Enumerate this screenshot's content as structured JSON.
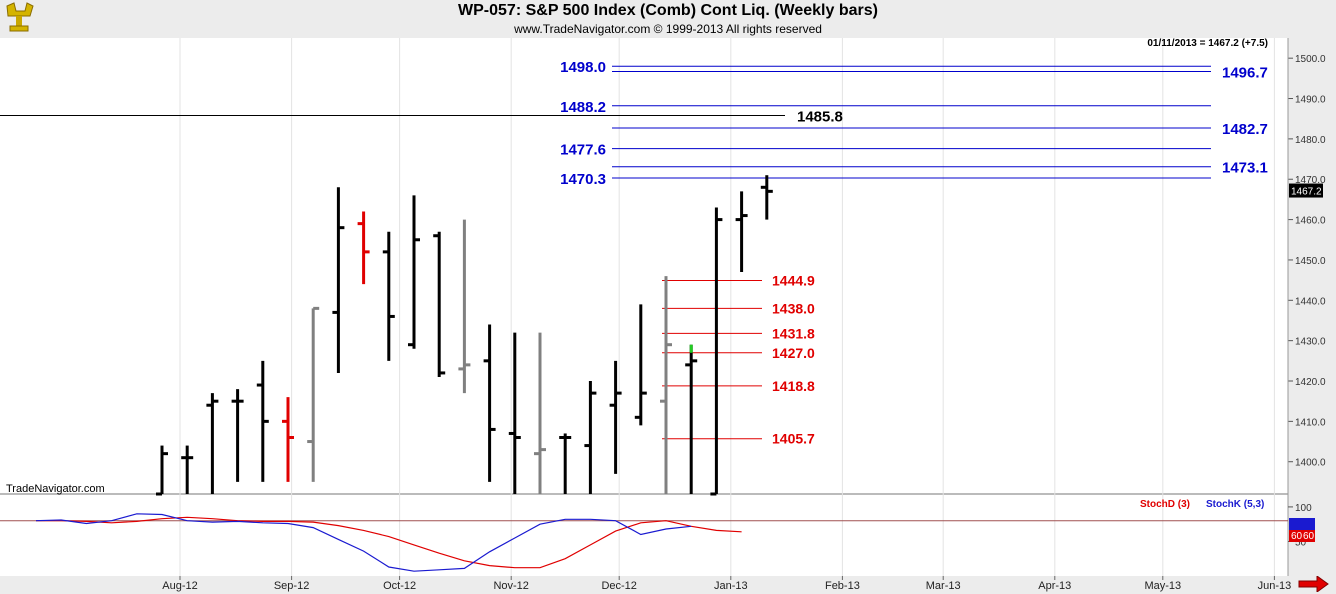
{
  "header": {
    "title": "WP-057:  S&P 500 Index (Comb) Cont Liq.  (Weekly bars)",
    "subtitle": "www.TradeNavigator.com © 1999-2013 All rights reserved"
  },
  "quote": "01/11/2013 = 1467.2 (+7.5)",
  "watermark": "TradeNavigator.com",
  "last_price_tag": "1467.2",
  "stoch_value_tags": [
    "60",
    "60"
  ],
  "colors": {
    "up": "#000000",
    "down": "#e00000",
    "inside": "#808080",
    "highlight": "#22cc22",
    "levels_blue": "#0000cc",
    "levels_red": "#e00000",
    "stochD": "#e00000",
    "stochK": "#1a1ad0",
    "nav_arrow": "#e00000"
  },
  "chart_data": [
    {
      "type": "ohlc",
      "title": "WP-057:  S&P 500 Index (Comb) Cont Liq.  (Weekly bars)",
      "ylim": [
        1392,
        1505
      ],
      "y_ticks": [
        1400,
        1410,
        1420,
        1430,
        1440,
        1450,
        1460,
        1470,
        1480,
        1490,
        1500
      ],
      "y_tick_labels": [
        "1400.0",
        "1410.0",
        "1420.0",
        "1430.0",
        "1440.0",
        "1450.0",
        "1460.0",
        "1470.0",
        "1480.0",
        "1490.0",
        "1500.0"
      ],
      "x_labels": [
        "Aug-12",
        "Sep-12",
        "Oct-12",
        "Nov-12",
        "Dec-12",
        "Jan-13",
        "Feb-13",
        "Mar-13",
        "Apr-13",
        "May-13",
        "Jun-13"
      ],
      "bars": [
        {
          "date": "2012-07-27",
          "o": 1392,
          "h": 1404,
          "l": 1392,
          "c": 1402,
          "color": "black"
        },
        {
          "date": "2012-08-03",
          "o": 1401,
          "h": 1404,
          "l": 1392,
          "c": 1401,
          "color": "black"
        },
        {
          "date": "2012-08-10",
          "o": 1414,
          "h": 1417,
          "l": 1392,
          "c": 1415,
          "color": "black"
        },
        {
          "date": "2012-08-17",
          "o": 1415,
          "h": 1418,
          "l": 1395,
          "c": 1415,
          "color": "black"
        },
        {
          "date": "2012-08-24",
          "o": 1419,
          "h": 1425,
          "l": 1395,
          "c": 1410,
          "color": "black"
        },
        {
          "date": "2012-08-31",
          "o": 1410,
          "h": 1416,
          "l": 1395,
          "c": 1406,
          "color": "red"
        },
        {
          "date": "2012-09-07",
          "o": 1405,
          "h": 1438,
          "l": 1395,
          "c": 1438,
          "color": "gray"
        },
        {
          "date": "2012-09-14",
          "o": 1437,
          "h": 1468,
          "l": 1422,
          "c": 1458,
          "color": "black"
        },
        {
          "date": "2012-09-21",
          "o": 1459,
          "h": 1462,
          "l": 1444,
          "c": 1452,
          "color": "red"
        },
        {
          "date": "2012-09-28",
          "o": 1452,
          "h": 1457,
          "l": 1425,
          "c": 1436,
          "color": "black"
        },
        {
          "date": "2012-10-05",
          "o": 1429,
          "h": 1466,
          "l": 1428,
          "c": 1455,
          "color": "black"
        },
        {
          "date": "2012-10-12",
          "o": 1456,
          "h": 1457,
          "l": 1421,
          "c": 1422,
          "color": "black"
        },
        {
          "date": "2012-10-19",
          "o": 1423,
          "h": 1460,
          "l": 1417,
          "c": 1424,
          "color": "gray"
        },
        {
          "date": "2012-10-26",
          "o": 1425,
          "h": 1434,
          "l": 1395,
          "c": 1408,
          "color": "black"
        },
        {
          "date": "2012-11-02",
          "o": 1407,
          "h": 1432,
          "l": 1392,
          "c": 1406,
          "color": "black"
        },
        {
          "date": "2012-11-09",
          "o": 1402,
          "h": 1432,
          "l": 1392,
          "c": 1403,
          "color": "gray"
        },
        {
          "date": "2012-11-16",
          "o": 1406,
          "h": 1407,
          "l": 1392,
          "c": 1406,
          "color": "black"
        },
        {
          "date": "2012-11-23",
          "o": 1404,
          "h": 1420,
          "l": 1392,
          "c": 1417,
          "color": "black"
        },
        {
          "date": "2012-11-30",
          "o": 1414,
          "h": 1425,
          "l": 1397,
          "c": 1417,
          "color": "black"
        },
        {
          "date": "2012-12-07",
          "o": 1411,
          "h": 1439,
          "l": 1409,
          "c": 1417,
          "color": "black"
        },
        {
          "date": "2012-12-14",
          "o": 1415,
          "h": 1446,
          "l": 1392,
          "c": 1429,
          "color": "gray"
        },
        {
          "date": "2012-12-21",
          "o": 1424,
          "h": 1429,
          "l": 1392,
          "c": 1425,
          "color": "black"
        },
        {
          "date": "2012-12-28",
          "o": 1392,
          "h": 1463,
          "l": 1392,
          "c": 1460,
          "color": "black"
        },
        {
          "date": "2013-01-04",
          "o": 1460,
          "h": 1467,
          "l": 1447,
          "c": 1461,
          "color": "black"
        },
        {
          "date": "2013-01-11",
          "o": 1468,
          "h": 1471,
          "l": 1460,
          "c": 1467,
          "color": "black"
        }
      ],
      "levels_blue_left": [
        1498.0,
        1488.2,
        1477.6,
        1470.3
      ],
      "levels_blue_right": [
        1496.7,
        1482.7,
        1473.1
      ],
      "level_black": 1485.8,
      "levels_red": [
        1444.9,
        1438.0,
        1431.8,
        1427.0,
        1418.8,
        1405.7
      ]
    },
    {
      "type": "line",
      "title": "",
      "legend": [
        "StochD (3)",
        "StochK (5,3)"
      ],
      "ylim": [
        0,
        110
      ],
      "y_ticks": [
        50,
        100
      ],
      "y_tick_labels": [
        "50",
        "100"
      ],
      "reference": 80,
      "series": [
        {
          "name": "StochD (3)",
          "values": [
            80,
            80,
            79,
            77,
            79,
            83,
            85,
            83,
            80,
            79,
            79,
            78,
            73,
            66,
            57,
            45,
            33,
            22,
            15,
            12,
            12,
            25,
            45,
            65,
            77,
            80,
            72,
            66,
            64
          ]
        },
        {
          "name": "StochK (5,3)",
          "values": [
            80,
            81,
            76,
            80,
            90,
            89,
            80,
            78,
            79,
            77,
            76,
            70,
            53,
            36,
            13,
            7,
            9,
            11,
            35,
            55,
            75,
            82,
            82,
            80,
            60,
            68,
            72
          ]
        }
      ]
    }
  ]
}
